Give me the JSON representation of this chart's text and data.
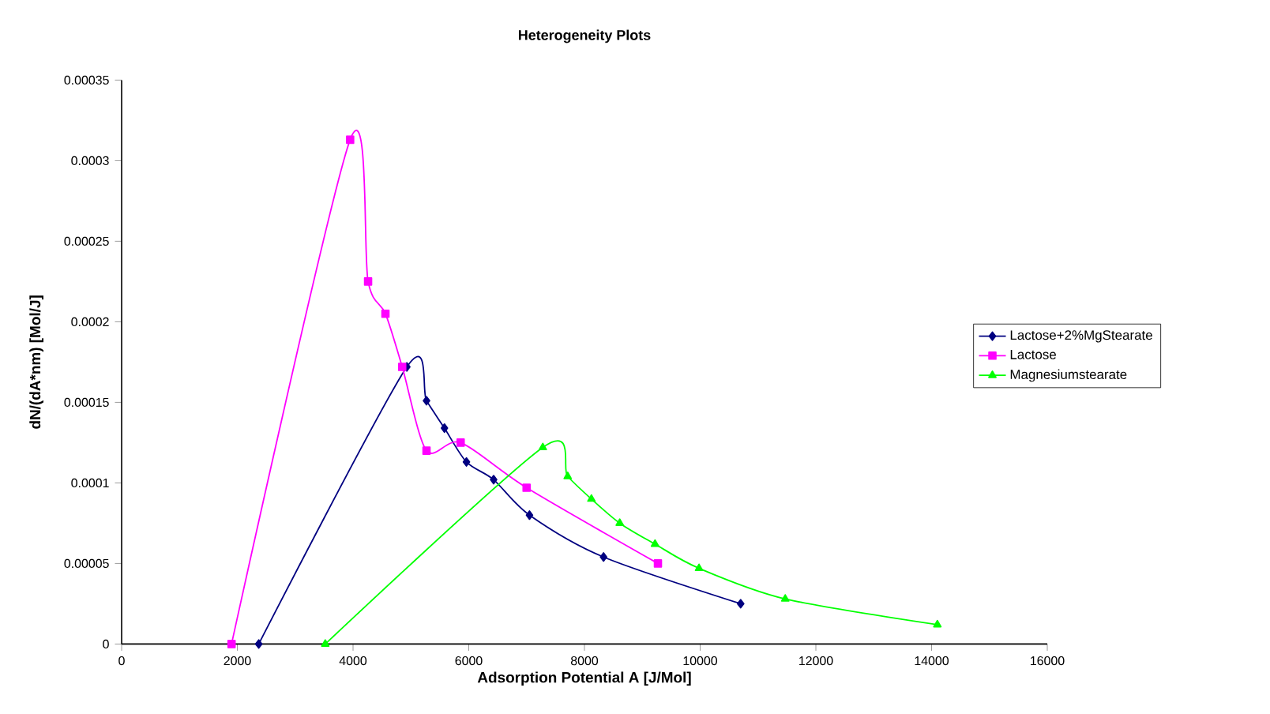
{
  "chart_data": {
    "type": "line",
    "title": "Heterogeneity Plots",
    "xlabel": "Adsorption Potential A [J/Mol]",
    "ylabel": "dN/(dA*nm) [Mol/J]",
    "xlim": [
      0,
      16000
    ],
    "xticks": [
      0,
      2000,
      4000,
      6000,
      8000,
      10000,
      12000,
      14000,
      16000
    ],
    "ylim": [
      0,
      0.00035
    ],
    "yticks": [
      0,
      {
        "value": 5e-05,
        "label": "0.00005"
      },
      {
        "value": 0.0001,
        "label": "0.0001"
      },
      {
        "value": 0.00015,
        "label": "0.00015"
      },
      {
        "value": 0.0002,
        "label": "0.0002"
      },
      {
        "value": 0.00025,
        "label": "0.00025"
      },
      {
        "value": 0.0003,
        "label": "0.0003"
      },
      {
        "value": 0.00035,
        "label": "0.00035"
      }
    ],
    "grid": false,
    "legend": "right",
    "series": [
      {
        "name": "Lactose+2%MgStearate",
        "color": "#000080",
        "marker": "diamond",
        "x": [
          2370,
          4930,
          5270,
          5580,
          5960,
          6430,
          7050,
          8330,
          10700
        ],
        "values": [
          0,
          0.000172,
          0.000151,
          0.000134,
          0.000113,
          0.000102,
          8e-05,
          5.4e-05,
          2.5e-05
        ]
      },
      {
        "name": "Lactose",
        "color": "#ff00ff",
        "marker": "square",
        "x": [
          1900,
          3950,
          4260,
          4560,
          4850,
          5270,
          5860,
          7000,
          9270
        ],
        "values": [
          0,
          0.000313,
          0.000225,
          0.000205,
          0.000172,
          0.00012,
          0.000125,
          9.7e-05,
          5e-05
        ]
      },
      {
        "name": "Magnesiumstearate",
        "color": "#00ff00",
        "marker": "triangle",
        "x": [
          3520,
          7280,
          7710,
          8120,
          8610,
          9220,
          9980,
          11470,
          14100
        ],
        "values": [
          0,
          0.000122,
          0.000104,
          9e-05,
          7.5e-05,
          6.2e-05,
          4.7e-05,
          2.8e-05,
          1.2e-05
        ]
      }
    ]
  }
}
